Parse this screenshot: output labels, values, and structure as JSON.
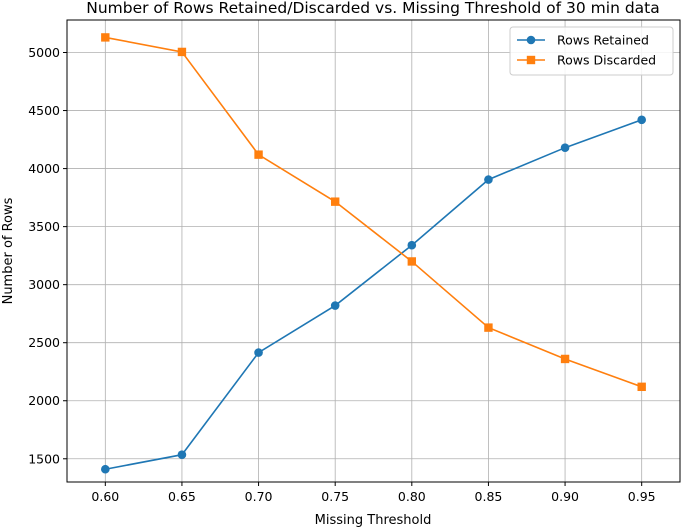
{
  "chart_data": {
    "type": "line",
    "title": "Number of Rows Retained/Discarded vs. Missing Threshold of 30 min data",
    "xlabel": "Missing Threshold",
    "ylabel": "Number of Rows",
    "x": [
      0.6,
      0.65,
      0.7,
      0.75,
      0.8,
      0.85,
      0.9,
      0.95
    ],
    "x_tick_labels": [
      "0.60",
      "0.65",
      "0.70",
      "0.75",
      "0.80",
      "0.85",
      "0.90",
      "0.95"
    ],
    "xlim": [
      0.575,
      0.975
    ],
    "ylim": [
      1300,
      5280
    ],
    "y_ticks": [
      1500,
      2000,
      2500,
      3000,
      3500,
      4000,
      4500,
      5000
    ],
    "grid": true,
    "legend_position": "top-right",
    "series": [
      {
        "name": "Rows Retained",
        "color": "#1f77b4",
        "marker": "circle",
        "values": [
          1410,
          1535,
          2415,
          2820,
          3340,
          3905,
          4180,
          4420
        ]
      },
      {
        "name": "Rows Discarded",
        "color": "#ff7f0e",
        "marker": "square",
        "values": [
          5130,
          5005,
          4120,
          3715,
          3200,
          2630,
          2360,
          2120
        ]
      }
    ]
  }
}
